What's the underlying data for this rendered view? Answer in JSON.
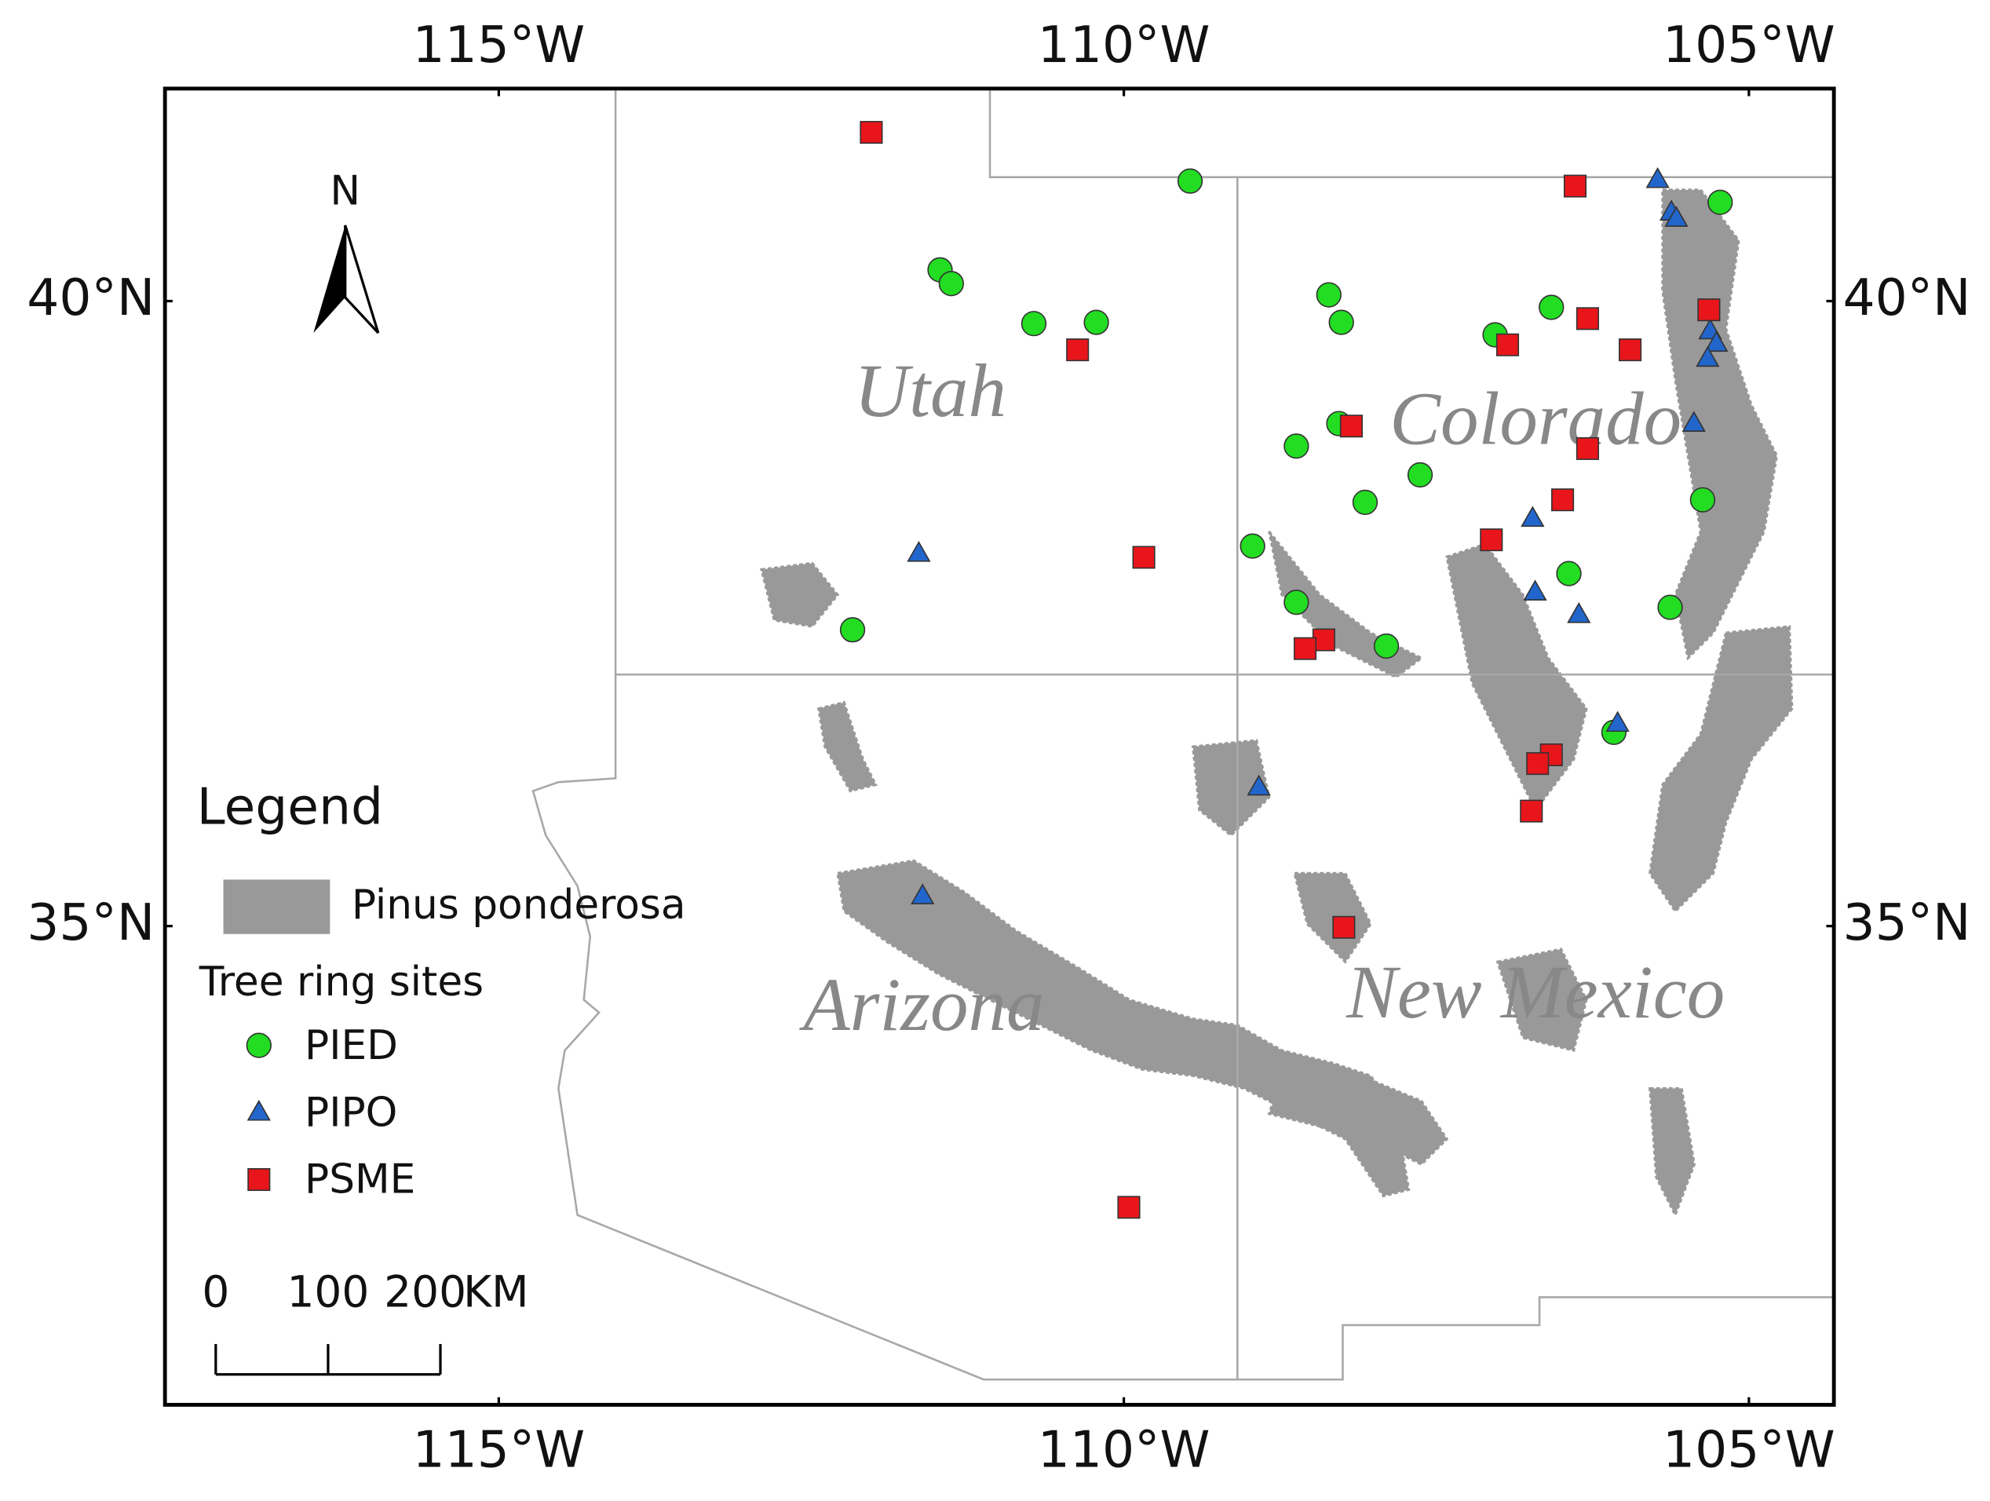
{
  "chart_data": {
    "type": "scatter",
    "xlim": [
      -117.67,
      -104.32
    ],
    "ylim": [
      31.17,
      41.7
    ],
    "xticks": [
      {
        "value": -115,
        "label": "115°W"
      },
      {
        "value": -110,
        "label": "110°W"
      },
      {
        "value": -105,
        "label": "105°W"
      }
    ],
    "yticks": [
      {
        "value": 40,
        "label": "40°N"
      },
      {
        "value": 35,
        "label": "35°N"
      }
    ],
    "annotations": [
      "Utah",
      "Colorado",
      "Arizona",
      "New Mexico"
    ],
    "north": "N",
    "legend": {
      "title": "Legend",
      "area_label": "Pinus ponderosa",
      "area_color": "#999999",
      "sites_title": "Tree ring sites"
    },
    "scale_bar": {
      "ticks": [
        0,
        100,
        200
      ],
      "unit": "KM"
    },
    "series": [
      {
        "name": "PIED",
        "color": "#22dd22",
        "marker": "circle",
        "x": [
          -109.47,
          -111.47,
          -111.38,
          -110.72,
          -110.22,
          -108.36,
          -108.26,
          -106.58,
          -107.03,
          -105.23,
          -108.28,
          -108.62,
          -107.63,
          -108.07,
          -105.37,
          -108.97,
          -106.44,
          -108.62,
          -105.63,
          -112.17,
          -107.9,
          -106.08
        ],
        "y": [
          40.96,
          40.25,
          40.14,
          39.82,
          39.83,
          40.05,
          39.83,
          39.95,
          39.73,
          40.79,
          39.02,
          38.84,
          38.61,
          38.39,
          38.41,
          38.04,
          37.82,
          37.59,
          37.55,
          37.37,
          37.24,
          36.55
        ]
      },
      {
        "name": "PIPO",
        "color": "#2266cc",
        "marker": "triangle",
        "x": [
          -105.73,
          -105.62,
          -105.58,
          -105.31,
          -105.26,
          -105.33,
          -105.44,
          -106.73,
          -111.64,
          -106.71,
          -106.36,
          -106.05,
          -108.92,
          -111.61
        ],
        "y": [
          40.97,
          40.71,
          40.66,
          39.76,
          39.66,
          39.54,
          39.02,
          38.26,
          37.98,
          37.67,
          37.49,
          36.62,
          36.11,
          35.24
        ]
      },
      {
        "name": "PSME",
        "color": "#e8161b",
        "marker": "square",
        "x": [
          -112.02,
          -106.39,
          -105.32,
          -106.29,
          -106.93,
          -105.95,
          -110.37,
          -108.18,
          -106.29,
          -106.49,
          -107.06,
          -109.84,
          -108.4,
          -108.55,
          -106.58,
          -106.69,
          -106.74,
          -108.24,
          -109.96
        ],
        "y": [
          41.35,
          40.92,
          39.93,
          39.86,
          39.65,
          39.61,
          39.61,
          39.0,
          38.82,
          38.41,
          38.09,
          37.95,
          37.29,
          37.22,
          36.37,
          36.3,
          35.92,
          34.99,
          32.75
        ]
      }
    ]
  }
}
